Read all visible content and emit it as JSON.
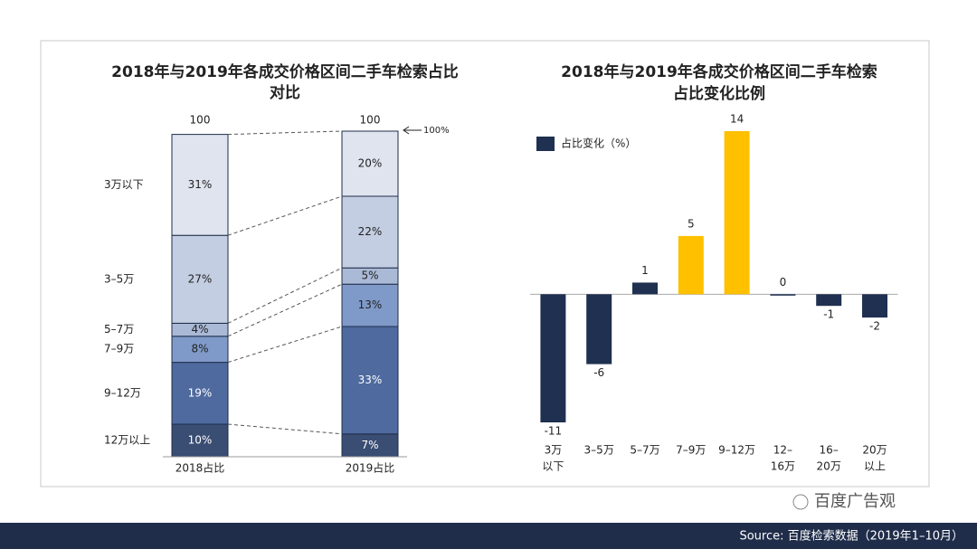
{
  "chart_data": [
    {
      "type": "stacked_bar",
      "title": [
        "2018年与2019年各成交价格区间二手车检索占比",
        "对比"
      ],
      "categories": [
        "2018占比",
        "2019占比"
      ],
      "totals": [
        100,
        100
      ],
      "annotation": "100%",
      "ylim": [
        0,
        100
      ],
      "series": [
        {
          "name": "12万以上",
          "color": "#3a4d73",
          "values": [
            10,
            7
          ],
          "value_labels": [
            "10%",
            "7%"
          ]
        },
        {
          "name": "9–12万",
          "color": "#4e6a9e",
          "values": [
            19,
            33
          ],
          "value_labels": [
            "19%",
            "33%"
          ]
        },
        {
          "name": "7–9万",
          "color": "#7f9ac9",
          "values": [
            8,
            13
          ],
          "value_labels": [
            "8%",
            "13%"
          ]
        },
        {
          "name": "5–7万",
          "color": "#a9b9d6",
          "values": [
            4,
            5
          ],
          "value_labels": [
            "4%",
            "5%"
          ]
        },
        {
          "name": "3–5万",
          "color": "#c4cee2",
          "values": [
            27,
            22
          ],
          "value_labels": [
            "27%",
            "22%"
          ]
        },
        {
          "name": "3万以下",
          "color": "#dfe4ef",
          "values": [
            31,
            20
          ],
          "value_labels": [
            "31%",
            "20%"
          ]
        }
      ]
    },
    {
      "type": "bar",
      "title": [
        "2018年与2019年各成交价格区间二手车检索",
        "占比变化比例"
      ],
      "legend": "占比变化（%）",
      "categories": [
        [
          "3万",
          "以下"
        ],
        [
          "3–5万"
        ],
        [
          "5–7万"
        ],
        [
          "7–9万"
        ],
        [
          "9–12万"
        ],
        [
          "12–",
          "16万"
        ],
        [
          "16–",
          "20万"
        ],
        [
          "20万",
          "以上"
        ]
      ],
      "values": [
        -11,
        -6,
        1,
        5,
        14,
        0,
        -1,
        -2
      ],
      "colors": [
        "#1f3050",
        "#1f3050",
        "#1f3050",
        "#ffc000",
        "#ffc000",
        "#1f3050",
        "#1f3050",
        "#1f3050"
      ],
      "ylim": [
        -11,
        14
      ]
    }
  ],
  "watermark": "百度广告观",
  "source": "Source: 百度检索数据（2019年1–10月）"
}
